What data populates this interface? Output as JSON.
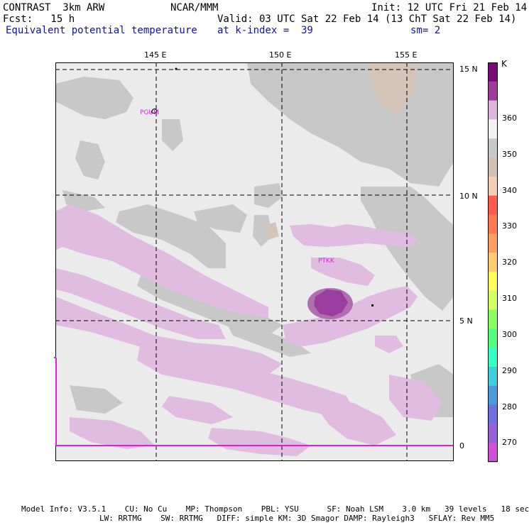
{
  "header": {
    "line1_left": "CONTRAST  3km ARW",
    "line1_mid": "NCAR/MMM",
    "line1_right": "Init: 12 UTC Fri 21 Feb 14",
    "line2_left": "Fcst:   15 h",
    "line2_right": "Valid: 03 UTC Sat 22 Feb 14 (13 ChT Sat 22 Feb 14)",
    "line3_left": "Equivalent potential temperature",
    "line3_mid": "at k-index =  39",
    "line3_right": "sm= 2"
  },
  "map": {
    "lon_labels": [
      "145 E",
      "150 E",
      "155 E"
    ],
    "lat_labels": [
      "15 N",
      "10 N",
      "5 N",
      "0"
    ],
    "stations": [
      "PGUM",
      "PTKK"
    ],
    "colors": {
      "land": "#ebebeb",
      "grey": "#c8c8c8",
      "tan": "#d4c5b8",
      "light_purple": "#e0bde0",
      "mid_purple": "#b070b0",
      "dark_purple": "#9a3ea0",
      "station": "#e020e0"
    }
  },
  "colorbar": {
    "unit": "K",
    "labels": [
      "360",
      "350",
      "340",
      "330",
      "320",
      "310",
      "300",
      "290",
      "280",
      "270"
    ],
    "colors": [
      "#7a0a78",
      "#9c3e98",
      "#dcb6dc",
      "#f2f2f2",
      "#c8c8c8",
      "#d2c2b6",
      "#f5cdb4",
      "#ff5a4a",
      "#ff7a50",
      "#ff9f5f",
      "#ffcc6e",
      "#ffff5a",
      "#d4ff60",
      "#8aff60",
      "#50ff7c",
      "#36ffc4",
      "#3cd0dc",
      "#4e98dc",
      "#7070e0",
      "#9a60d8",
      "#d050d8"
    ]
  },
  "footer": {
    "line1": "Model Info: V3.5.1    CU: No Cu    MP: Thompson    PBL: YSU      SF: Noah LSM    3.0 km   39 levels   18 sec",
    "line2": "LW: RRTMG    SW: RRTMG   DIFF: simple KM: 3D Smagor DAMP: Rayleigh3   SFLAY: Rev MM5"
  }
}
